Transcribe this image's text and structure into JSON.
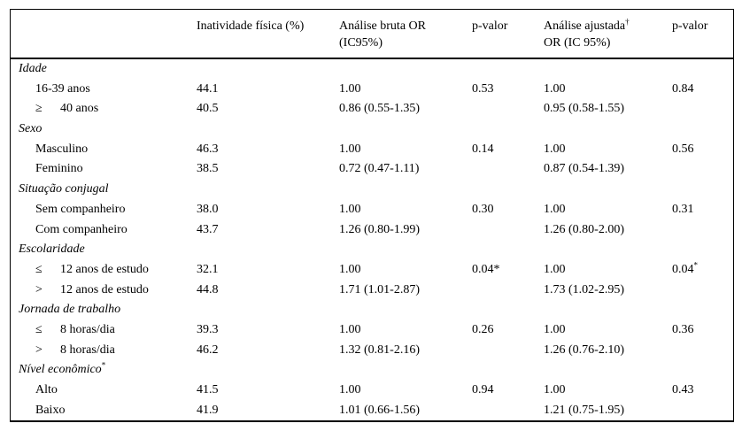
{
  "colors": {
    "background": "#ffffff",
    "text": "#000000",
    "border": "#000000"
  },
  "table": {
    "header": {
      "col_label": "",
      "col_pct": "Inatividade física (%)",
      "col_crude_line1": "Análise bruta OR",
      "col_crude_line2": "(IC95%)",
      "col_pvalue_crude": "p-valor",
      "col_adj_line1": "Análise ajustada",
      "col_adj_sup": "†",
      "col_adj_line2": "OR (IC 95%)",
      "col_pvalue_adj": "p-valor"
    },
    "rows": [
      {
        "type": "section",
        "label": "Idade"
      },
      {
        "type": "item",
        "sym": "",
        "label": "16-39 anos",
        "pct": "44.1",
        "or_crude": "1.00",
        "p_crude": "0.53",
        "or_adj": "1.00",
        "p_adj": "0.84"
      },
      {
        "type": "item",
        "sym": "≥",
        "label": "40 anos",
        "pct": "40.5",
        "or_crude": "0.86 (0.55-1.35)",
        "p_crude": "",
        "or_adj": "0.95 (0.58-1.55)",
        "p_adj": ""
      },
      {
        "type": "section",
        "label": "Sexo"
      },
      {
        "type": "item",
        "sym": "",
        "label": "Masculino",
        "pct": "46.3",
        "or_crude": "1.00",
        "p_crude": "0.14",
        "or_adj": "1.00",
        "p_adj": "0.56"
      },
      {
        "type": "item",
        "sym": "",
        "label": "Feminino",
        "pct": "38.5",
        "or_crude": "0.72 (0.47-1.11)",
        "p_crude": "",
        "or_adj": "0.87 (0.54-1.39)",
        "p_adj": ""
      },
      {
        "type": "section",
        "label": "Situação conjugal"
      },
      {
        "type": "item",
        "sym": "",
        "label": "Sem companheiro",
        "pct": "38.0",
        "or_crude": "1.00",
        "p_crude": "0.30",
        "or_adj": "1.00",
        "p_adj": "0.31"
      },
      {
        "type": "item",
        "sym": "",
        "label": "Com companheiro",
        "pct": "43.7",
        "or_crude": "1.26 (0.80-1.99)",
        "p_crude": "",
        "or_adj": "1.26 (0.80-2.00)",
        "p_adj": ""
      },
      {
        "type": "section",
        "label": "Escolaridade"
      },
      {
        "type": "item",
        "sym": "≤",
        "label": "12 anos de estudo",
        "pct": "32.1",
        "or_crude": "1.00",
        "p_crude": "0.04*",
        "or_adj": "1.00",
        "p_adj": "0.04",
        "p_adj_sup": "*"
      },
      {
        "type": "item",
        "sym": ">",
        "label": "12 anos de estudo",
        "pct": "44.8",
        "or_crude": "1.71 (1.01-2.87)",
        "p_crude": "",
        "or_adj": "1.73 (1.02-2.95)",
        "p_adj": ""
      },
      {
        "type": "section",
        "label": "Jornada de trabalho"
      },
      {
        "type": "item",
        "sym": "≤",
        "label": "8 horas/dia",
        "pct": "39.3",
        "or_crude": "1.00",
        "p_crude": "0.26",
        "or_adj": "1.00",
        "p_adj": "0.36"
      },
      {
        "type": "item",
        "sym": ">",
        "label": "8 horas/dia",
        "pct": "46.2",
        "or_crude": "1.32 (0.81-2.16)",
        "p_crude": "",
        "or_adj": "1.26 (0.76-2.10)",
        "p_adj": ""
      },
      {
        "type": "section",
        "label": "Nível econômico",
        "label_sup": "*"
      },
      {
        "type": "item",
        "sym": "",
        "label": "Alto",
        "pct": "41.5",
        "or_crude": "1.00",
        "p_crude": "0.94",
        "or_adj": "1.00",
        "p_adj": "0.43"
      },
      {
        "type": "item",
        "sym": "",
        "label": "Baixo",
        "pct": "41.9",
        "or_crude": "1.01 (0.66-1.56)",
        "p_crude": "",
        "or_adj": "1.21 (0.75-1.95)",
        "p_adj": ""
      }
    ]
  }
}
